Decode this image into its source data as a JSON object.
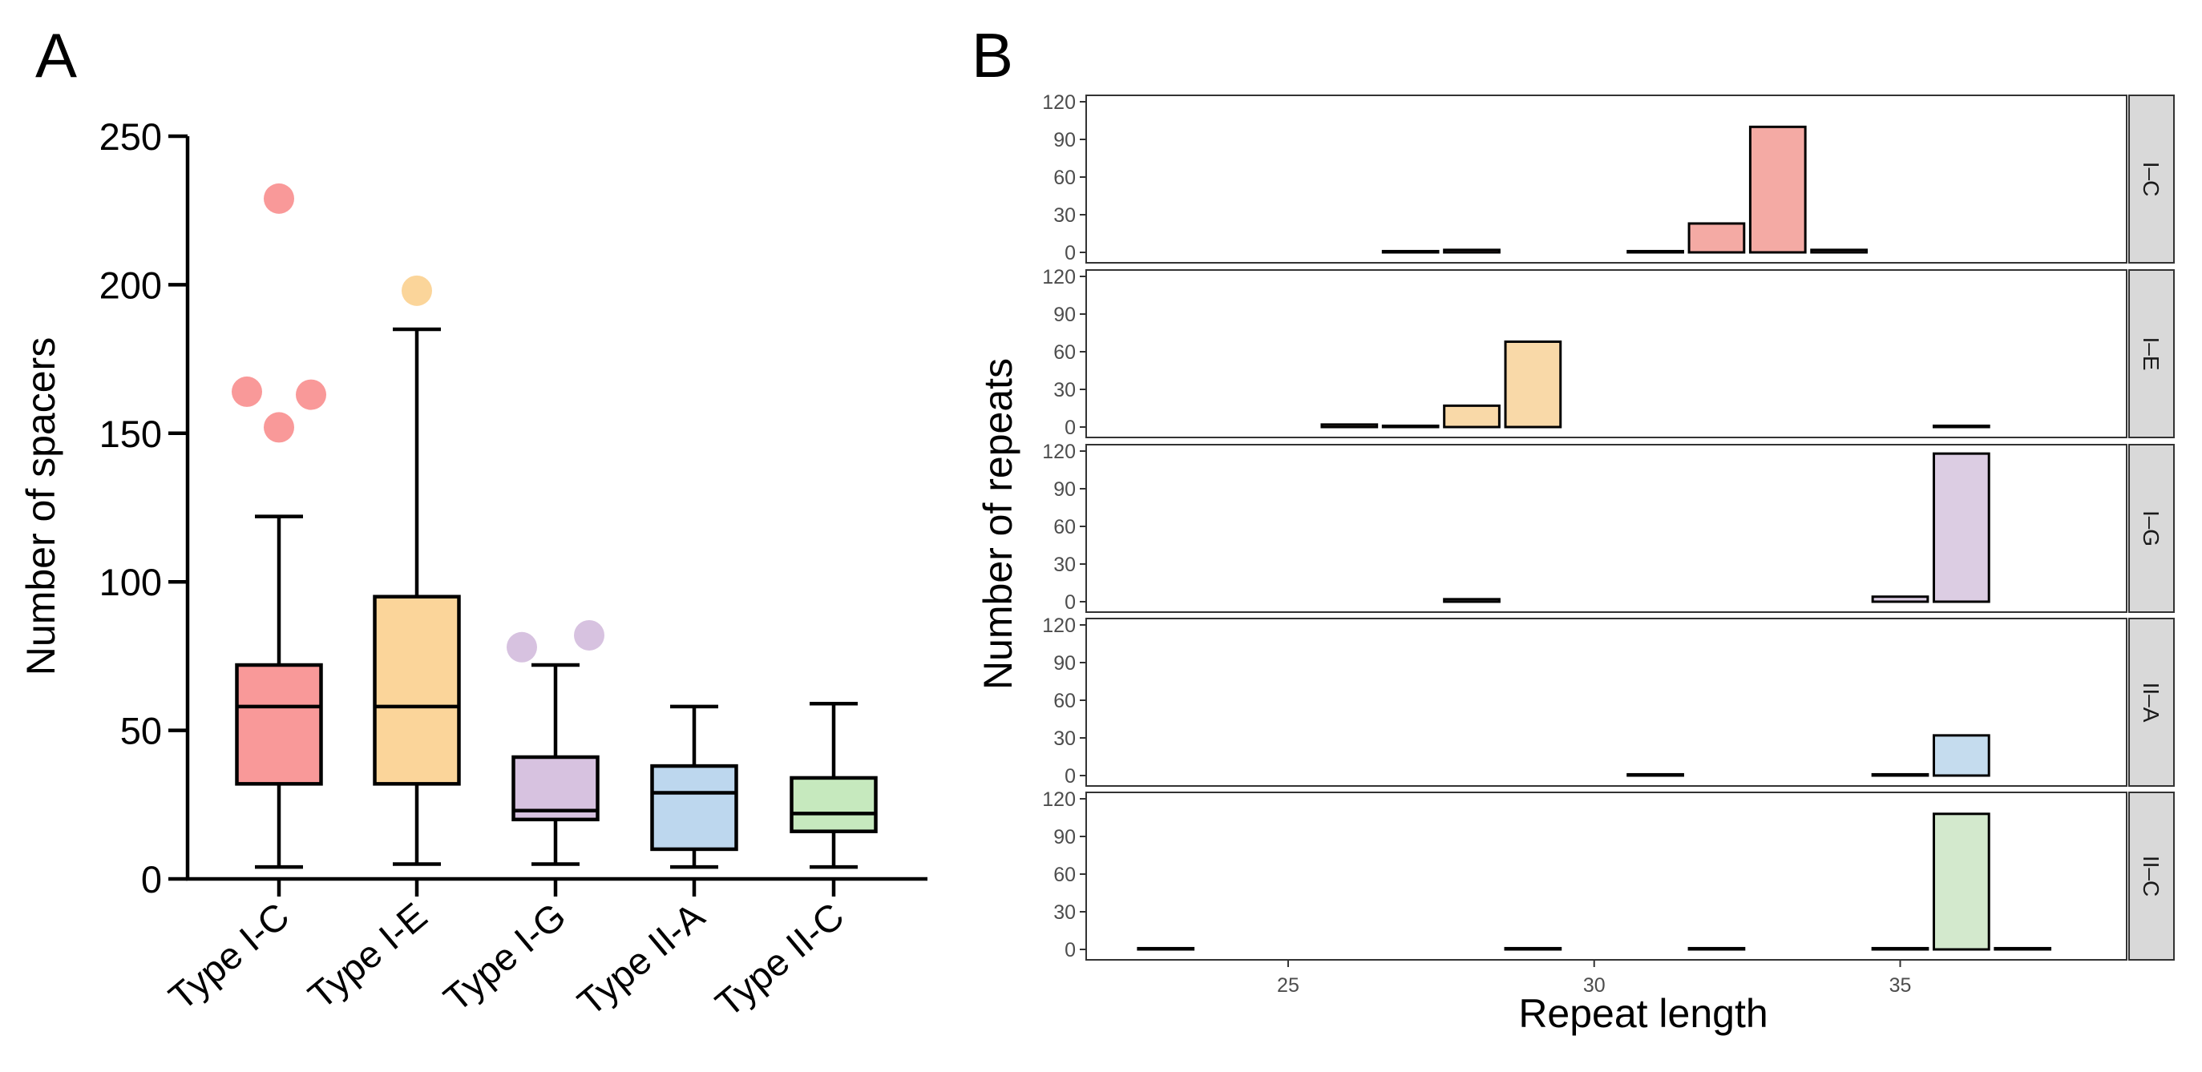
{
  "panels": {
    "a_label": "A",
    "b_label": "B"
  },
  "chart_data": [
    {
      "type": "box",
      "panel": "A",
      "title": "",
      "xlabel": "",
      "ylabel": "Number of spacers",
      "ylim": [
        0,
        250
      ],
      "yticks": [
        "0",
        "50",
        "100",
        "150",
        "200",
        "250"
      ],
      "grid": false,
      "categories": [
        "Type I-C",
        "Type I-E",
        "Type I-G",
        "Type II-A",
        "Type II-C"
      ],
      "boxes": [
        {
          "category": "Type I-C",
          "color": "#f99999",
          "outlier_color": "#f99999",
          "min": 4,
          "q1": 32,
          "median": 58,
          "q3": 72,
          "max": 122,
          "outliers": [
            229,
            164,
            163,
            152
          ]
        },
        {
          "category": "Type I-E",
          "color": "#fbd59a",
          "outlier_color": "#fbd59a",
          "min": 5,
          "q1": 32,
          "median": 58,
          "q3": 95,
          "max": 185,
          "outliers": [
            198
          ]
        },
        {
          "category": "Type I-G",
          "color": "#d7c2e0",
          "outlier_color": "#d7c2e0",
          "min": 5,
          "q1": 20,
          "median": 23,
          "q3": 41,
          "max": 72,
          "outliers": [
            78,
            82
          ]
        },
        {
          "category": "Type II-A",
          "color": "#bdd7ee",
          "outlier_color": "#bdd7ee",
          "min": 4,
          "q1": 10,
          "median": 29,
          "q3": 38,
          "max": 58,
          "outliers": []
        },
        {
          "category": "Type II-C",
          "color": "#c6e9be",
          "outlier_color": "#c6e9be",
          "min": 4,
          "q1": 16,
          "median": 22,
          "q3": 34,
          "max": 59,
          "outliers": []
        }
      ]
    },
    {
      "type": "bar",
      "panel": "B",
      "title": "",
      "xlabel": "Repeat length",
      "ylabel": "Number of repeats",
      "xlim": [
        21.7,
        38.7
      ],
      "xticks": [
        "25",
        "30",
        "35"
      ],
      "ylim": [
        0,
        120
      ],
      "yticks": [
        "0",
        "30",
        "60",
        "90",
        "120"
      ],
      "grid": false,
      "x": [
        23,
        26,
        27,
        28,
        29,
        31,
        32,
        33,
        34,
        35,
        36,
        37
      ],
      "series": [
        {
          "name": "I–C",
          "color": "#f4aaa4",
          "values": [
            0,
            0,
            1,
            2,
            0,
            1,
            23,
            100,
            2,
            0,
            0,
            0
          ]
        },
        {
          "name": "I–E",
          "color": "#f9d9a8",
          "values": [
            0,
            2,
            1,
            17,
            68,
            0,
            0,
            0,
            0,
            0,
            1,
            0
          ]
        },
        {
          "name": "I–G",
          "color": "#dccde3",
          "values": [
            0,
            0,
            0,
            2,
            0,
            0,
            0,
            0,
            0,
            4,
            118,
            0
          ]
        },
        {
          "name": "II–A",
          "color": "#c5dcee",
          "values": [
            0,
            0,
            0,
            0,
            0,
            1,
            0,
            0,
            0,
            1,
            32,
            0
          ]
        },
        {
          "name": "II–C",
          "color": "#d3e9cd",
          "values": [
            1,
            0,
            0,
            0,
            1,
            0,
            1,
            0,
            0,
            1,
            108,
            1
          ]
        }
      ]
    }
  ]
}
